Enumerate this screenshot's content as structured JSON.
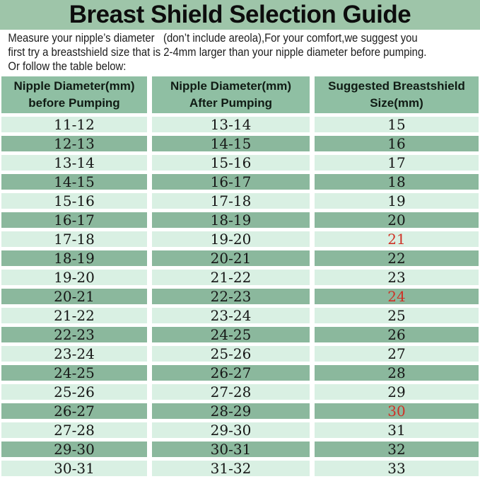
{
  "title": "Breast Shield Selection Guide",
  "intro": {
    "line1": "Measure your nipple’s diameter   (don’t include areola),For your comfort,we suggest you",
    "line2": "first try a breastshield size that is 2-4mm larger than your nipple diameter before pumping.",
    "line3": "Or follow the table below:"
  },
  "table": {
    "headers": [
      {
        "line1": "Nipple Diameter(mm)",
        "line2": "before Pumping"
      },
      {
        "line1": "Nipple Diameter(mm)",
        "line2": "After Pumping"
      },
      {
        "line1": "Suggested Breastshield",
        "line2": "Size(mm)"
      }
    ],
    "rows": [
      {
        "before": "11-12",
        "after": "13-14",
        "size": "15",
        "red": false
      },
      {
        "before": "12-13",
        "after": "14-15",
        "size": "16",
        "red": false
      },
      {
        "before": "13-14",
        "after": "15-16",
        "size": "17",
        "red": false
      },
      {
        "before": "14-15",
        "after": "16-17",
        "size": "18",
        "red": false
      },
      {
        "before": "15-16",
        "after": "17-18",
        "size": "19",
        "red": false
      },
      {
        "before": "16-17",
        "after": "18-19",
        "size": "20",
        "red": false
      },
      {
        "before": "17-18",
        "after": "19-20",
        "size": "21",
        "red": true
      },
      {
        "before": "18-19",
        "after": "20-21",
        "size": "22",
        "red": false
      },
      {
        "before": "19-20",
        "after": "21-22",
        "size": "23",
        "red": false
      },
      {
        "before": "20-21",
        "after": "22-23",
        "size": "24",
        "red": true
      },
      {
        "before": "21-22",
        "after": "23-24",
        "size": "25",
        "red": false
      },
      {
        "before": "22-23",
        "after": "24-25",
        "size": "26",
        "red": false
      },
      {
        "before": "23-24",
        "after": "25-26",
        "size": "27",
        "red": false
      },
      {
        "before": "24-25",
        "after": "26-27",
        "size": "28",
        "red": false
      },
      {
        "before": "25-26",
        "after": "27-28",
        "size": "29",
        "red": false
      },
      {
        "before": "26-27",
        "after": "28-29",
        "size": "30",
        "red": true
      },
      {
        "before": "27-28",
        "after": "29-30",
        "size": "31",
        "red": false
      },
      {
        "before": "29-30",
        "after": "30-31",
        "size": "32",
        "red": false
      },
      {
        "before": "30-31",
        "after": "31-32",
        "size": "33",
        "red": false
      }
    ]
  },
  "colors": {
    "title_band_green": "#9ec5a9",
    "header_cell_green": "#8fbfa3",
    "row_dark_green": "#8bb89d",
    "row_light_green": "#d9f0e3",
    "highlight_red": "#cf3126"
  }
}
